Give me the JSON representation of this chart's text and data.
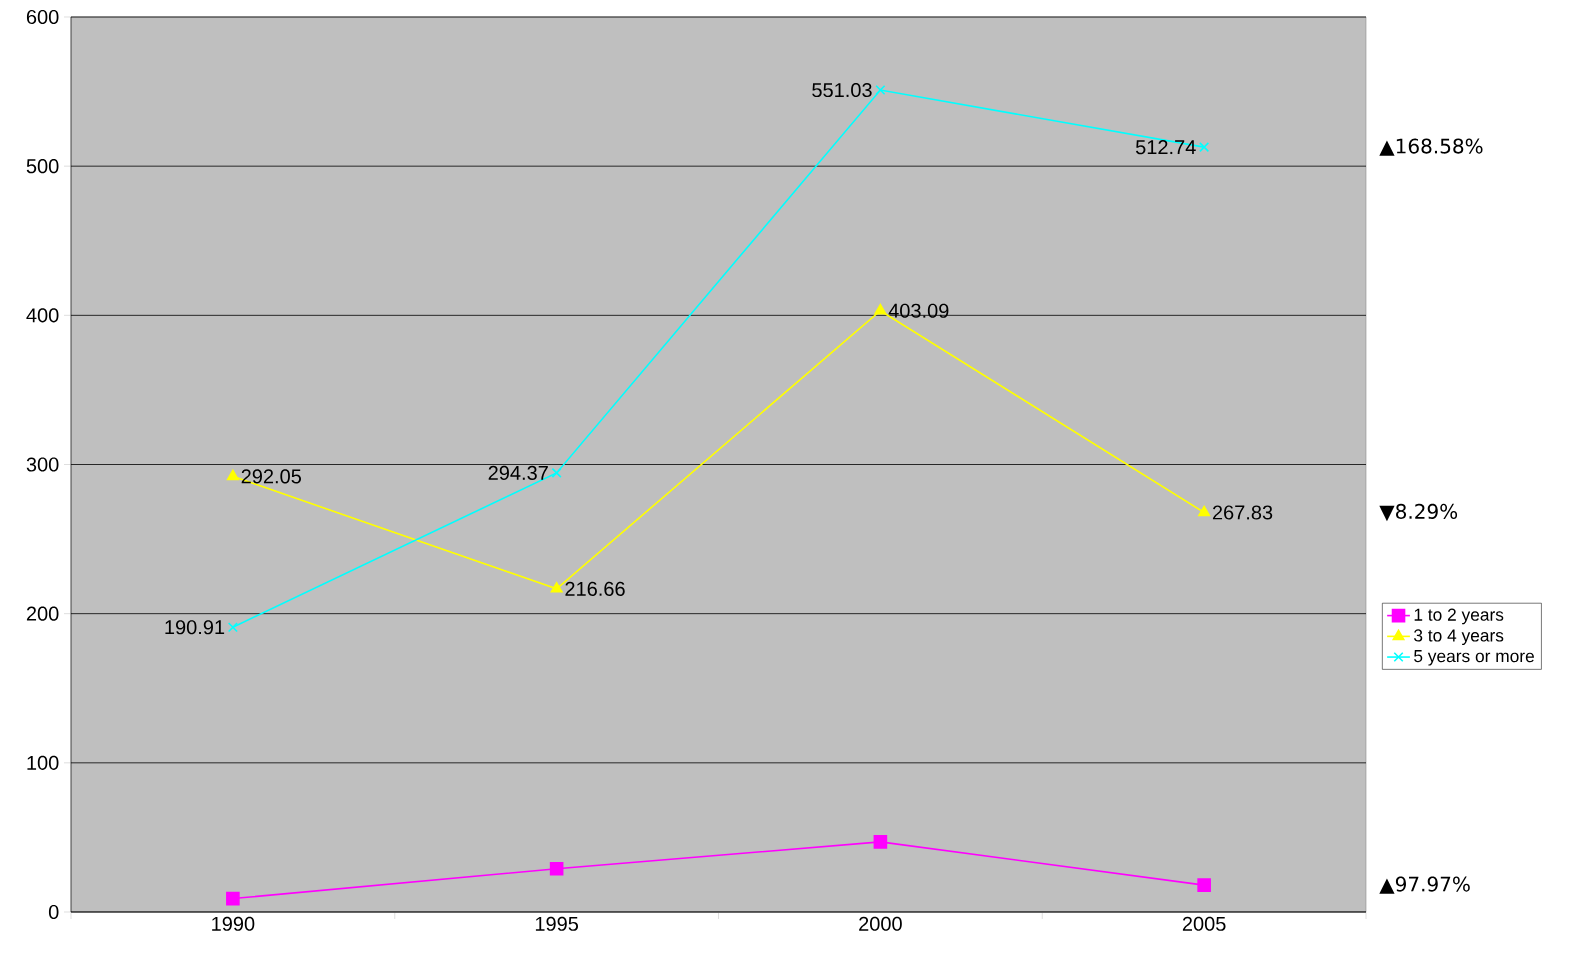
{
  "chart_data": {
    "type": "line",
    "categories": [
      "1990",
      "1995",
      "2000",
      "2005"
    ],
    "series": [
      {
        "name": "1 to 2 years",
        "color": "#ff00ff",
        "marker": "square",
        "values": [
          9,
          29,
          47,
          18
        ]
      },
      {
        "name": "3 to 4 years",
        "color": "#ffff00",
        "marker": "triangle",
        "values": [
          292.05,
          216.66,
          403.09,
          267.83
        ],
        "value_labels": [
          "292.05",
          "216.66",
          "403.09",
          "267.83"
        ]
      },
      {
        "name": "5 years or more",
        "color": "#00ffff",
        "marker": "cross",
        "values": [
          190.91,
          294.37,
          551.03,
          512.74
        ],
        "value_labels": [
          "190.91",
          "294.37",
          "551.03",
          "512.74"
        ]
      }
    ],
    "ylim": [
      0,
      600
    ],
    "yticks": [
      0,
      100,
      200,
      300,
      400,
      500,
      600
    ],
    "grid": "y",
    "legend": "right",
    "line_style": "solid",
    "annotations": [
      "▲168.58%",
      "▼8.29%",
      "▲97.97%"
    ]
  }
}
